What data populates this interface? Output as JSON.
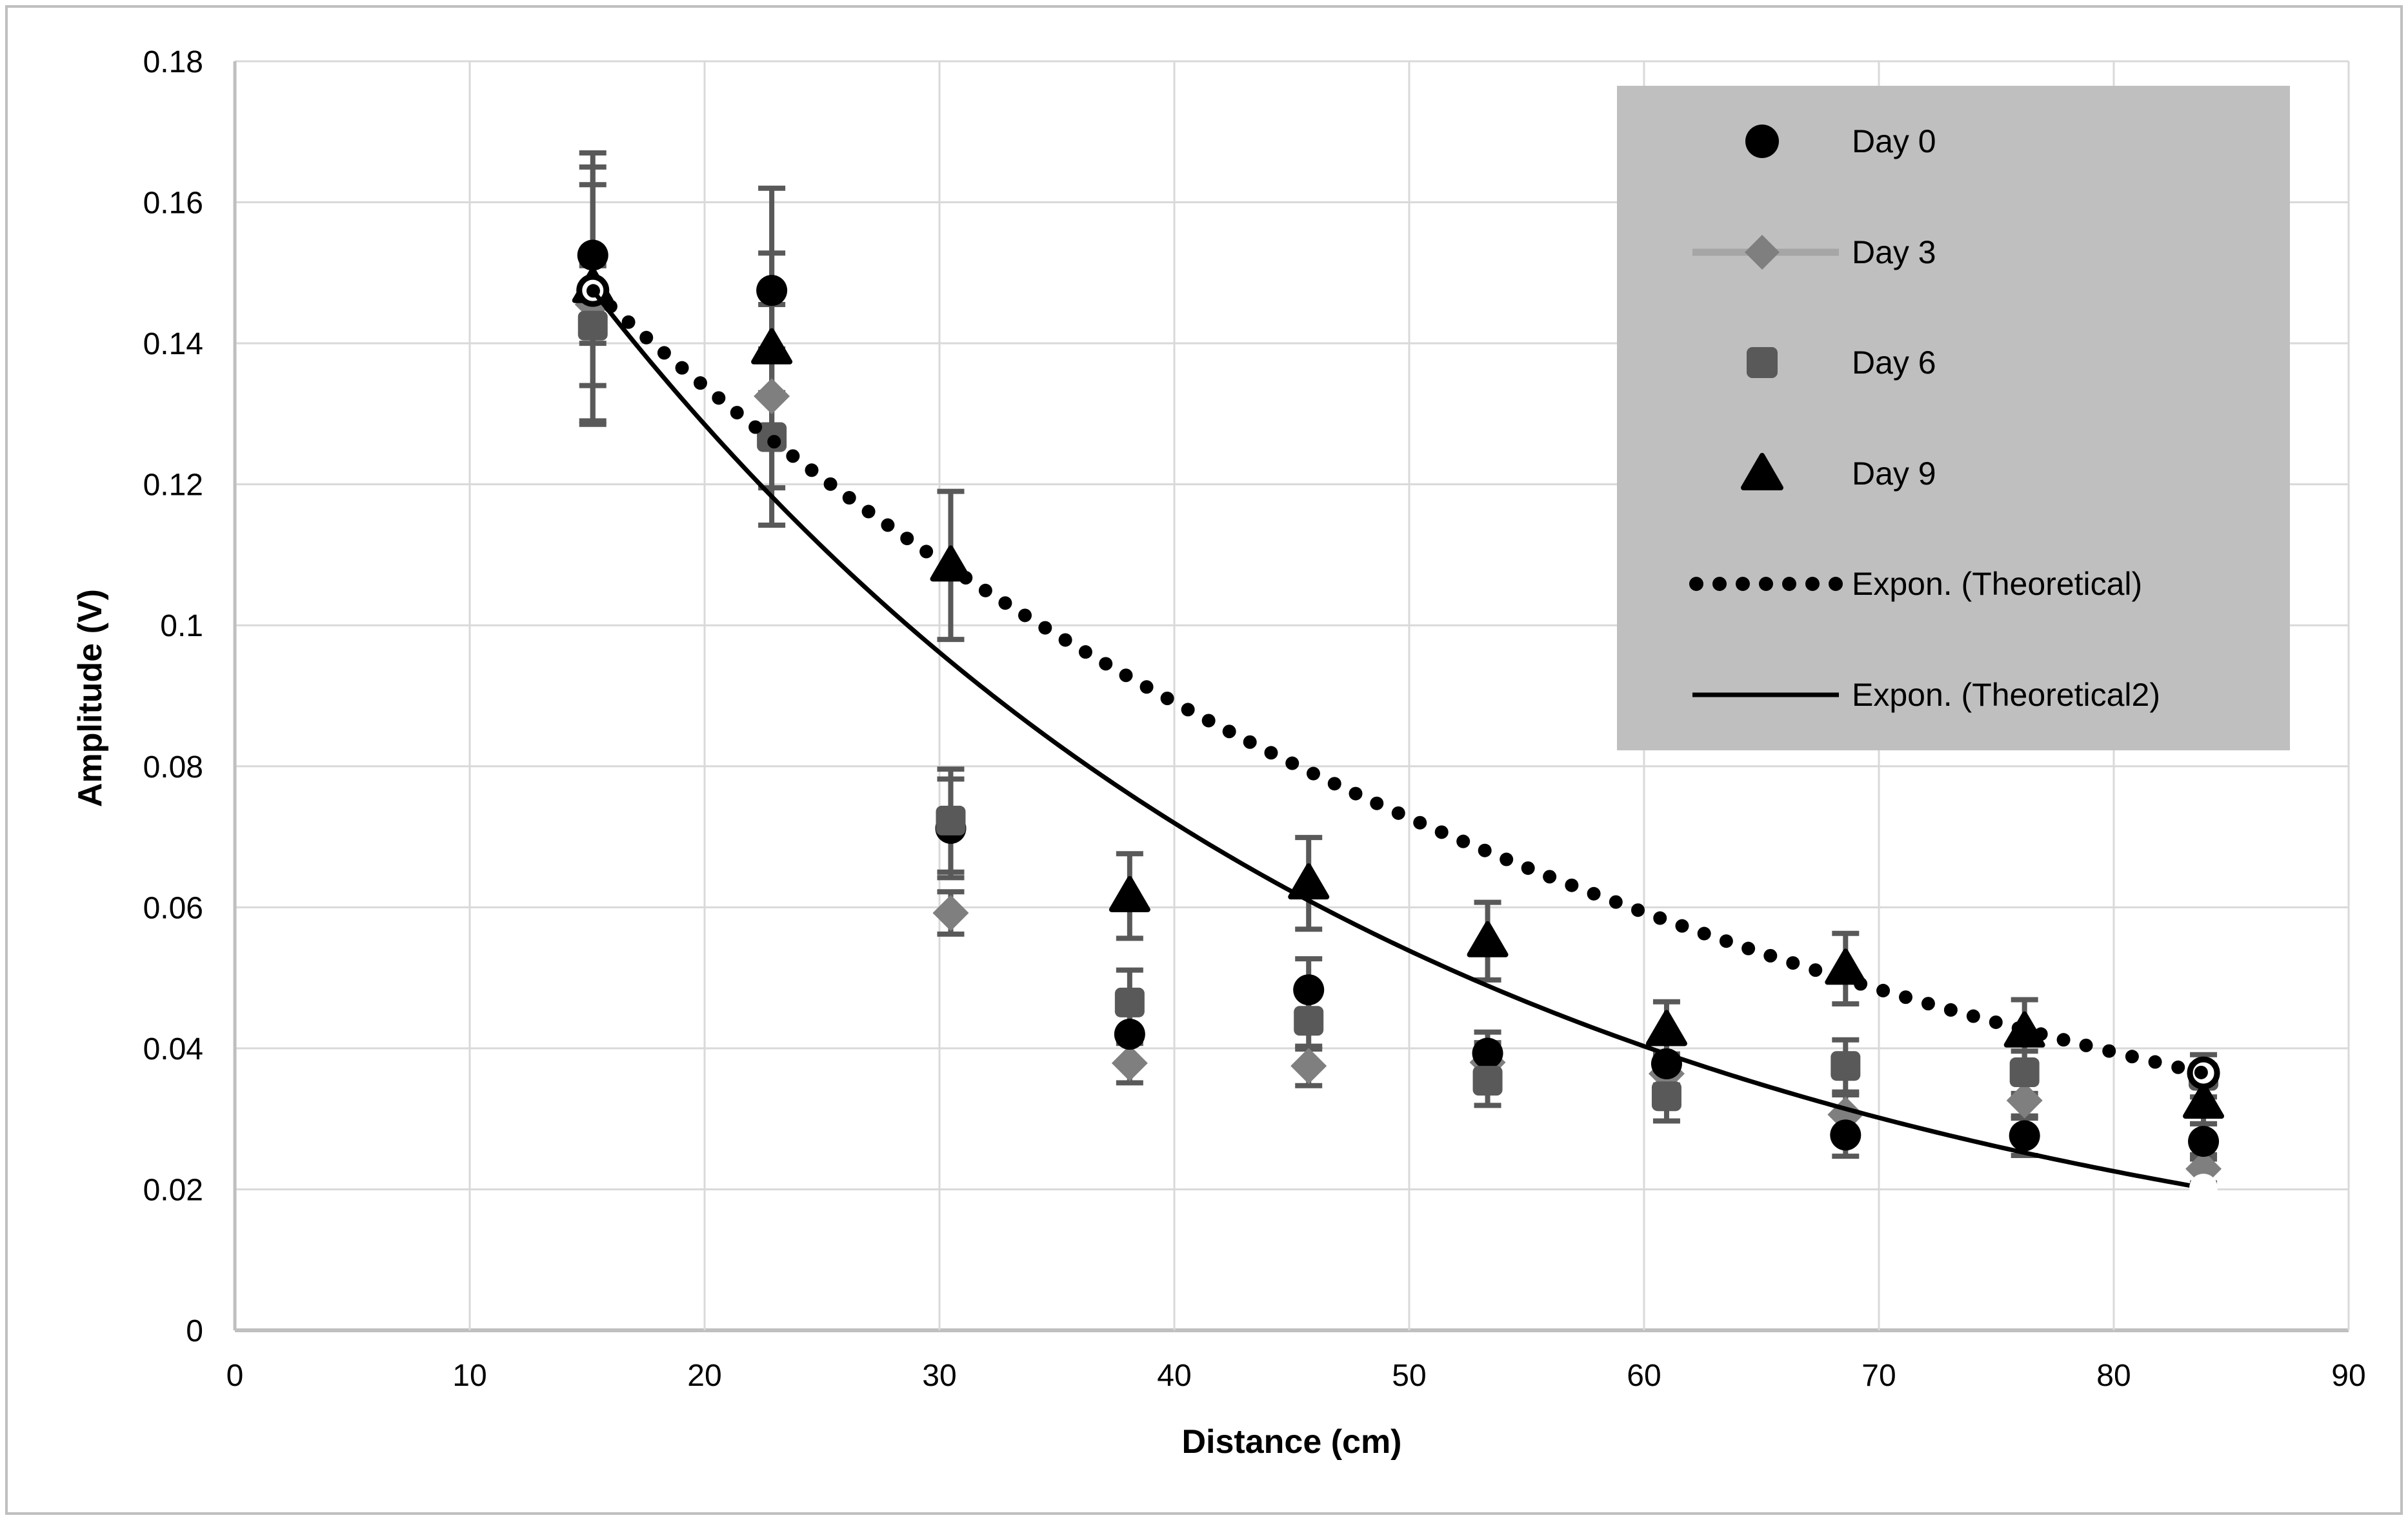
{
  "chart_data": {
    "type": "scatter",
    "title": "",
    "xlabel": "Distance (cm)",
    "ylabel": "Amplitude (V)",
    "xlim": [
      0,
      90
    ],
    "ylim": [
      0,
      0.18
    ],
    "grid": true,
    "x_ticks": [
      0,
      10,
      20,
      30,
      40,
      50,
      60,
      70,
      80,
      90
    ],
    "x_tick_labels": [
      "0",
      "10",
      "20",
      "30",
      "40",
      "50",
      "60",
      "70",
      "80",
      "90"
    ],
    "y_ticks": [
      0,
      0.02,
      0.04,
      0.06,
      0.08,
      0.1,
      0.12,
      0.14,
      0.16,
      0.18
    ],
    "y_tick_labels": [
      "0",
      "0.02",
      "0.04",
      "0.06",
      "0.08",
      "0.1",
      "0.12",
      "0.14",
      "0.16",
      "0.18"
    ],
    "x": [
      15.24,
      22.86,
      30.48,
      38.1,
      45.72,
      53.34,
      60.96,
      68.58,
      76.2,
      83.82
    ],
    "series": [
      {
        "name": "Day 0",
        "marker": "circle",
        "color": "#000000",
        "values": [
          0.1525,
          0.1475,
          0.0712,
          0.042,
          0.0483,
          0.0393,
          0.0378,
          0.0277,
          0.0276,
          0.0268
        ],
        "errors": [
          0.0125,
          0.0145,
          0.007,
          0.004,
          0.0044,
          0.003,
          0.003,
          0.003,
          0.0028,
          0.0025
        ]
      },
      {
        "name": "Day 3",
        "marker": "diamond",
        "color": "#7F7F7F",
        "values": [
          0.1455,
          0.1325,
          0.0592,
          0.0379,
          0.0375,
          0.038,
          0.0364,
          0.0306,
          0.0326,
          0.0229
        ],
        "errors": [
          0.017,
          0.013,
          0.003,
          0.0028,
          0.0028,
          0.0028,
          0.0028,
          0.0028,
          0.0025,
          0.002
        ]
      },
      {
        "name": "Day 6",
        "marker": "square",
        "color": "#595959",
        "values": [
          0.1425,
          0.1267,
          0.0723,
          0.0465,
          0.0439,
          0.0354,
          0.0332,
          0.0375,
          0.0366,
          0.0361
        ],
        "errors": [
          0.0085,
          0.0125,
          0.0073,
          0.0046,
          0.004,
          0.0035,
          0.0035,
          0.0037,
          0.003,
          0.003
        ]
      },
      {
        "name": "Day 9",
        "marker": "triangle",
        "color": "#000000",
        "values": [
          0.148,
          0.1393,
          0.1085,
          0.0616,
          0.0634,
          0.0552,
          0.0426,
          0.0513,
          0.0424,
          0.0323
        ],
        "errors": [
          0.019,
          0.0135,
          0.0105,
          0.006,
          0.0065,
          0.0055,
          0.004,
          0.005,
          0.0045,
          0.003
        ]
      }
    ],
    "trendlines": [
      {
        "name": "Expon. (Theoretical)",
        "style": "dotted",
        "color": "#000000",
        "x_start": 15.24,
        "y_start": 0.1475,
        "x_end": 83.82,
        "y_end": 0.0365,
        "endpoint_marker": "open-circle"
      },
      {
        "name": "Expon. (Theoretical2)",
        "style": "solid",
        "color": "#000000",
        "x_start": 15.24,
        "y_start": 0.1475,
        "x_end": 83.82,
        "y_end": 0.0202,
        "endpoint_marker": "white-circle-end"
      }
    ],
    "error_bar_color": "#595959",
    "grid_color": "#D9D9D9",
    "axis_color": "#BFBFBF"
  },
  "axes": {
    "x_title": "Distance (cm)",
    "y_title": "Amplitude (V)"
  },
  "legend": {
    "background": "#BFBFBF",
    "items": [
      {
        "label": "Day 0",
        "swatch": "circle",
        "color": "#000000"
      },
      {
        "label": "Day 3",
        "swatch": "diamond-line",
        "color": "#7F7F7F",
        "line_color": "#A6A6A6"
      },
      {
        "label": "Day 6",
        "swatch": "square",
        "color": "#595959"
      },
      {
        "label": "Day 9",
        "swatch": "triangle",
        "color": "#000000"
      },
      {
        "label": "Expon. (Theoretical)",
        "swatch": "dotted-line",
        "color": "#000000"
      },
      {
        "label": "Expon. (Theoretical2)",
        "swatch": "solid-line",
        "color": "#000000"
      }
    ]
  }
}
